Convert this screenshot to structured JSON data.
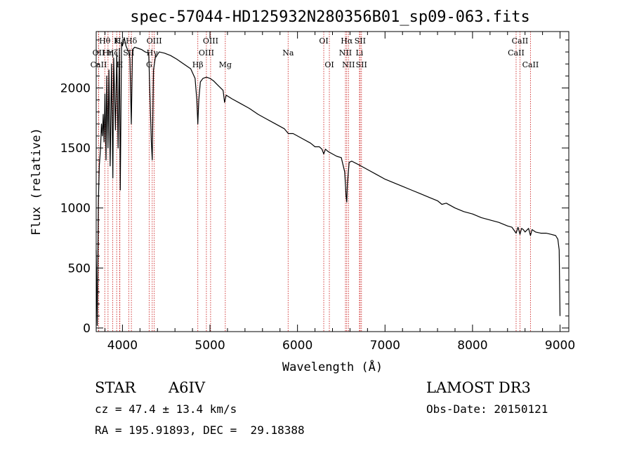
{
  "chart_data": {
    "type": "line",
    "title": "spec-57044-HD125932N280356B01_sp09-063.fits",
    "xlabel": "Wavelength (Å)",
    "ylabel": "Flux (relative)",
    "xlim": [
      3700,
      9100
    ],
    "ylim": [
      -30,
      2470
    ],
    "x_ticks": [
      4000,
      5000,
      6000,
      7000,
      8000,
      9000
    ],
    "y_ticks": [
      0,
      500,
      1000,
      1500,
      2000
    ],
    "grid": false,
    "series": [
      {
        "name": "spectrum",
        "x": [
          3700,
          3712,
          3725,
          3735,
          3750,
          3760,
          3770,
          3780,
          3790,
          3800,
          3812,
          3820,
          3835,
          3845,
          3860,
          3875,
          3890,
          3900,
          3920,
          3935,
          3950,
          3965,
          3975,
          3990,
          4000,
          4020,
          4040,
          4070,
          4085,
          4101,
          4115,
          4140,
          4180,
          4220,
          4260,
          4300,
          4330,
          4340,
          4355,
          4375,
          4420,
          4480,
          4550,
          4620,
          4700,
          4780,
          4830,
          4850,
          4861,
          4872,
          4890,
          4920,
          4960,
          5000,
          5040,
          5080,
          5150,
          5167,
          5185,
          5250,
          5350,
          5450,
          5550,
          5650,
          5750,
          5850,
          5895,
          5950,
          6050,
          6150,
          6200,
          6250,
          6280,
          6300,
          6320,
          6350,
          6400,
          6450,
          6500,
          6540,
          6555,
          6563,
          6570,
          6590,
          6620,
          6700,
          6800,
          6900,
          7000,
          7100,
          7200,
          7300,
          7400,
          7500,
          7600,
          7650,
          7700,
          7800,
          7900,
          8000,
          8100,
          8200,
          8300,
          8400,
          8450,
          8498,
          8520,
          8542,
          8560,
          8580,
          8600,
          8640,
          8662,
          8680,
          8720,
          8780,
          8840,
          8900,
          8950,
          8975,
          8990,
          9000
        ],
        "y": [
          650,
          20,
          1050,
          1350,
          1500,
          1700,
          1600,
          1780,
          1550,
          1950,
          1400,
          2100,
          1500,
          2150,
          1350,
          2200,
          1250,
          2250,
          1650,
          2300,
          1500,
          2330,
          1150,
          2380,
          2350,
          2420,
          2350,
          2300,
          2250,
          1700,
          2320,
          2340,
          2330,
          2320,
          2300,
          2290,
          1550,
          1400,
          2150,
          2250,
          2300,
          2290,
          2270,
          2240,
          2200,
          2160,
          2080,
          1900,
          1700,
          1900,
          2050,
          2080,
          2090,
          2080,
          2060,
          2030,
          1980,
          1880,
          1940,
          1910,
          1870,
          1830,
          1780,
          1740,
          1700,
          1660,
          1620,
          1620,
          1580,
          1540,
          1510,
          1510,
          1490,
          1450,
          1490,
          1470,
          1450,
          1430,
          1420,
          1300,
          1100,
          1050,
          1200,
          1380,
          1390,
          1360,
          1320,
          1280,
          1240,
          1210,
          1180,
          1150,
          1120,
          1090,
          1060,
          1030,
          1040,
          1000,
          970,
          950,
          920,
          900,
          880,
          850,
          840,
          790,
          840,
          780,
          830,
          820,
          800,
          830,
          770,
          820,
          800,
          790,
          790,
          780,
          770,
          740,
          650,
          100
        ]
      }
    ],
    "lines": [
      {
        "name": "CaII",
        "wavelength": 3728
      },
      {
        "name": "OII",
        "wavelength": 3728
      },
      {
        "name": "Hθ",
        "wavelength": 3798
      },
      {
        "name": "Hη",
        "wavelength": 3835
      },
      {
        "name": "Hζ",
        "wavelength": 3889
      },
      {
        "name": "K",
        "wavelength": 3934
      },
      {
        "name": "Hε",
        "wavelength": 3970
      },
      {
        "name": "H",
        "wavelength": 3968
      },
      {
        "name": "SII",
        "wavelength": 4072
      },
      {
        "name": "Hδ",
        "wavelength": 4102
      },
      {
        "name": "G",
        "wavelength": 4305
      },
      {
        "name": "Hγ",
        "wavelength": 4340
      },
      {
        "name": "OIII",
        "wavelength": 4363
      },
      {
        "name": "Hβ",
        "wavelength": 4861
      },
      {
        "name": "OIII",
        "wavelength": 4959
      },
      {
        "name": "OIII",
        "wavelength": 5007
      },
      {
        "name": "Mg",
        "wavelength": 5175
      },
      {
        "name": "Na",
        "wavelength": 5893
      },
      {
        "name": "OI",
        "wavelength": 6300
      },
      {
        "name": "OI",
        "wavelength": 6364
      },
      {
        "name": "NII",
        "wavelength": 6548
      },
      {
        "name": "Hα",
        "wavelength": 6563
      },
      {
        "name": "NII",
        "wavelength": 6583
      },
      {
        "name": "Li",
        "wavelength": 6708
      },
      {
        "name": "SII",
        "wavelength": 6716
      },
      {
        "name": "SII",
        "wavelength": 6731
      },
      {
        "name": "CaII",
        "wavelength": 8498
      },
      {
        "name": "CaII",
        "wavelength": 8542
      },
      {
        "name": "CaII",
        "wavelength": 8662
      }
    ],
    "line_labels": [
      {
        "text": "Hθ",
        "wavelength": 3798,
        "row": 1
      },
      {
        "text": "K",
        "wavelength": 3934,
        "row": 1
      },
      {
        "text": "Hε",
        "wavelength": 3970,
        "row": 1
      },
      {
        "text": "Hδ",
        "wavelength": 4102,
        "row": 1
      },
      {
        "text": "OIII",
        "wavelength": 4363,
        "row": 1
      },
      {
        "text": "OIII",
        "wavelength": 5007,
        "row": 1
      },
      {
        "text": "OI",
        "wavelength": 6300,
        "row": 1
      },
      {
        "text": "Hα",
        "wavelength": 6563,
        "row": 1
      },
      {
        "text": "SII",
        "wavelength": 6716,
        "row": 1
      },
      {
        "text": "CaII",
        "wavelength": 8542,
        "row": 1
      },
      {
        "text": "OII",
        "wavelength": 3728,
        "row": 2
      },
      {
        "text": "Hη",
        "wavelength": 3835,
        "row": 2
      },
      {
        "text": "Hζ",
        "wavelength": 3889,
        "row": 2
      },
      {
        "text": "SII",
        "wavelength": 4072,
        "row": 2
      },
      {
        "text": "Hγ",
        "wavelength": 4340,
        "row": 2
      },
      {
        "text": "OIII",
        "wavelength": 4959,
        "row": 2
      },
      {
        "text": "Na",
        "wavelength": 5893,
        "row": 2
      },
      {
        "text": "NII",
        "wavelength": 6548,
        "row": 2
      },
      {
        "text": "Li",
        "wavelength": 6708,
        "row": 2
      },
      {
        "text": "CaII",
        "wavelength": 8498,
        "row": 2
      },
      {
        "text": "CaII",
        "wavelength": 3728,
        "row": 3
      },
      {
        "text": "H",
        "wavelength": 3968,
        "row": 3
      },
      {
        "text": "G",
        "wavelength": 4305,
        "row": 3
      },
      {
        "text": "Hβ",
        "wavelength": 4861,
        "row": 3
      },
      {
        "text": "Mg",
        "wavelength": 5175,
        "row": 3
      },
      {
        "text": "OI",
        "wavelength": 6364,
        "row": 3
      },
      {
        "text": "NII",
        "wavelength": 6583,
        "row": 3
      },
      {
        "text": "SII",
        "wavelength": 6731,
        "row": 3
      },
      {
        "text": "CaII",
        "wavelength": 8662,
        "row": 3
      }
    ]
  },
  "info": {
    "object_class": "STAR",
    "subclass": "A6IV",
    "survey": "LAMOST DR3",
    "cz": "cz = 47.4 ± 13.4 km/s",
    "obs_date": "Obs-Date: 20150121",
    "coords": "RA = 195.91893, DEC =  29.18388"
  },
  "colors": {
    "spectrum": "#000000",
    "line_markers": "#cc2222",
    "axes": "#000000"
  }
}
